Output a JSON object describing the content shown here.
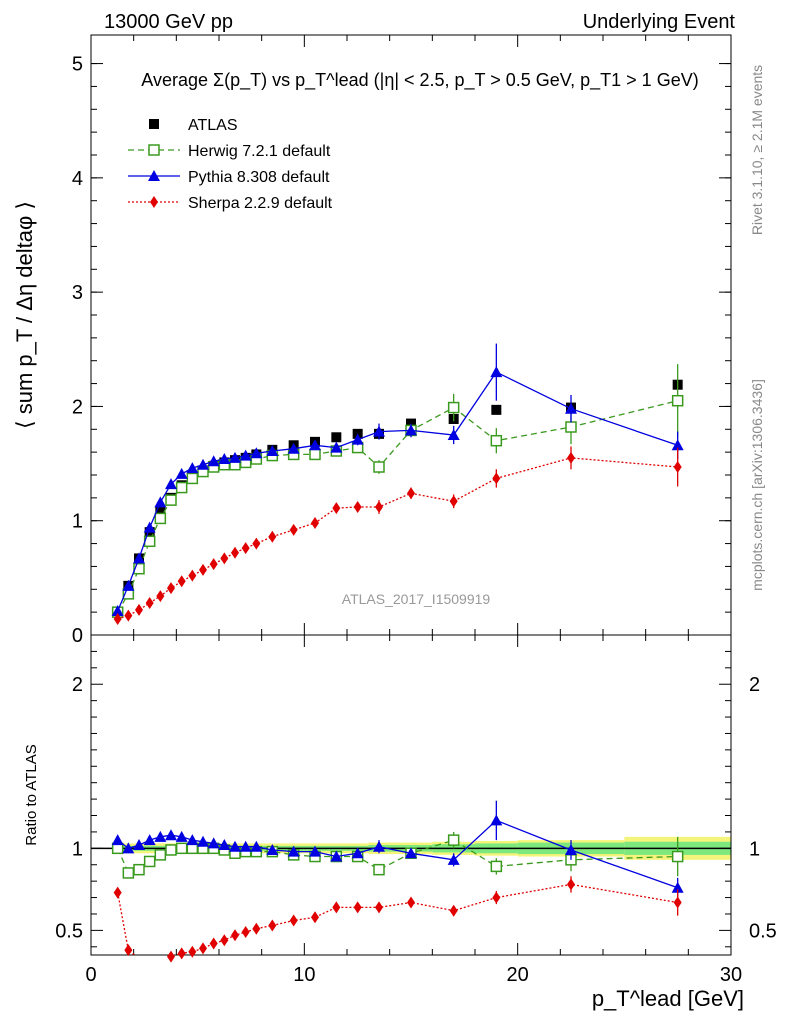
{
  "header": {
    "left": "13000 GeV pp",
    "right": "Underlying Event"
  },
  "side_text": {
    "rivet": "Rivet 3.1.10, ≥ 2.1M events",
    "mcplots": "mcplots.cern.ch [arXiv:1306.3436]"
  },
  "colors": {
    "atlas": "#000000",
    "herwig": "#3a9a1e",
    "pythia": "#0000e0",
    "sherpa": "#e00000",
    "band_inner": "#7de87d",
    "band_outer": "#f4f47a"
  },
  "chart_data": [
    {
      "type": "scatter",
      "title": "Average Σ(p_T) vs p_T^lead (|η| < 2.5, p_T > 0.5 GeV, p_T1 > 1 GeV)",
      "ylabel": "⟨ sum p_T / Δη deltaφ ⟩",
      "watermark": "ATLAS_2017_I1509919",
      "xlim": [
        0,
        30
      ],
      "ylim": [
        0,
        5.25
      ],
      "yticks": [
        0,
        1,
        2,
        3,
        4,
        5
      ],
      "legend_position": "top-left",
      "x": [
        1.25,
        1.75,
        2.25,
        2.75,
        3.25,
        3.75,
        4.25,
        4.75,
        5.25,
        5.75,
        6.25,
        6.75,
        7.25,
        7.75,
        8.5,
        9.5,
        10.5,
        11.5,
        12.5,
        13.5,
        15,
        17,
        19,
        22.5,
        27.5
      ],
      "series": [
        {
          "name": "ATLAS",
          "style": "marker",
          "marker": "square-filled",
          "values": [
            0.2,
            0.43,
            0.67,
            0.9,
            1.08,
            1.2,
            1.31,
            1.39,
            1.44,
            1.48,
            1.51,
            1.53,
            1.55,
            1.58,
            1.62,
            1.66,
            1.69,
            1.73,
            1.76,
            1.76,
            1.85,
            1.89,
            1.97,
            1.99,
            2.19
          ]
        },
        {
          "name": "Herwig 7.2.1 default",
          "style": "dashed",
          "marker": "square-open",
          "values": [
            0.2,
            0.36,
            0.58,
            0.82,
            1.02,
            1.18,
            1.29,
            1.37,
            1.43,
            1.47,
            1.49,
            1.49,
            1.51,
            1.54,
            1.57,
            1.58,
            1.58,
            1.61,
            1.64,
            1.47,
            1.79,
            1.99,
            1.7,
            1.82,
            2.05
          ],
          "errors": [
            0,
            0,
            0,
            0,
            0,
            0,
            0,
            0,
            0,
            0,
            0,
            0,
            0,
            0,
            0,
            0,
            0,
            0,
            0.04,
            0.06,
            0.05,
            0.12,
            0.11,
            0.15,
            0.32
          ]
        },
        {
          "name": "Pythia 8.308 default",
          "style": "solid",
          "marker": "triangle",
          "values": [
            0.21,
            0.43,
            0.67,
            0.94,
            1.16,
            1.32,
            1.41,
            1.46,
            1.49,
            1.52,
            1.54,
            1.55,
            1.57,
            1.59,
            1.61,
            1.63,
            1.66,
            1.64,
            1.71,
            1.78,
            1.79,
            1.75,
            2.3,
            1.98,
            1.66
          ],
          "errors": [
            0,
            0,
            0,
            0,
            0,
            0,
            0,
            0,
            0,
            0,
            0,
            0,
            0,
            0,
            0,
            0,
            0,
            0,
            0.05,
            0.07,
            0.06,
            0.08,
            0.25,
            0.12,
            0.12
          ]
        },
        {
          "name": "Sherpa 2.2.9 default",
          "style": "dotted",
          "marker": "diamond",
          "values": [
            0.14,
            0.17,
            0.22,
            0.28,
            0.34,
            0.41,
            0.47,
            0.52,
            0.57,
            0.62,
            0.67,
            0.72,
            0.76,
            0.8,
            0.86,
            0.92,
            0.98,
            1.11,
            1.12,
            1.12,
            1.24,
            1.17,
            1.37,
            1.55,
            1.47
          ],
          "errors": [
            0,
            0,
            0,
            0,
            0,
            0,
            0,
            0,
            0,
            0,
            0,
            0,
            0,
            0,
            0,
            0,
            0,
            0.04,
            0.04,
            0.06,
            0.05,
            0.06,
            0.08,
            0.1,
            0.17
          ]
        }
      ]
    },
    {
      "type": "scatter",
      "xlabel": "p_T^lead [GeV]",
      "ylabel": "Ratio to ATLAS",
      "xlim": [
        0,
        30
      ],
      "ylim": [
        0.35,
        2.3
      ],
      "xticks": [
        0,
        10,
        20,
        30
      ],
      "yticks": [
        0.5,
        1,
        2
      ],
      "x": [
        1.25,
        1.75,
        2.25,
        2.75,
        3.25,
        3.75,
        4.25,
        4.75,
        5.25,
        5.75,
        6.25,
        6.75,
        7.25,
        7.75,
        8.5,
        9.5,
        10.5,
        11.5,
        12.5,
        13.5,
        15,
        17,
        19,
        22.5,
        27.5
      ],
      "band": {
        "edges": [
          1,
          13,
          16,
          18,
          20,
          25,
          30
        ],
        "inner": [
          0.015,
          0.02,
          0.025,
          0.03,
          0.035,
          0.04
        ],
        "outer": [
          0.03,
          0.035,
          0.04,
          0.045,
          0.05,
          0.07
        ]
      },
      "series": [
        {
          "name": "Herwig 7.2.1 default",
          "style": "dashed",
          "marker": "square-open",
          "values": [
            1.0,
            0.85,
            0.87,
            0.92,
            0.96,
            0.99,
            1.0,
            1.0,
            1.0,
            1.0,
            0.99,
            0.97,
            0.98,
            0.98,
            0.98,
            0.96,
            0.95,
            0.95,
            0.95,
            0.87,
            0.97,
            1.05,
            0.89,
            0.93,
            0.95
          ],
          "errors": [
            0,
            0,
            0,
            0,
            0,
            0,
            0,
            0,
            0,
            0,
            0,
            0,
            0,
            0,
            0,
            0,
            0,
            0,
            0.02,
            0.03,
            0.03,
            0.05,
            0.05,
            0.07,
            0.12
          ]
        },
        {
          "name": "Pythia 8.308 default",
          "style": "solid",
          "marker": "triangle",
          "values": [
            1.05,
            1.0,
            1.02,
            1.05,
            1.07,
            1.08,
            1.07,
            1.05,
            1.04,
            1.03,
            1.02,
            1.01,
            1.01,
            1.01,
            0.99,
            0.98,
            0.98,
            0.95,
            0.97,
            1.01,
            0.97,
            0.93,
            1.17,
            0.99,
            0.76
          ],
          "errors": [
            0,
            0,
            0,
            0,
            0,
            0,
            0,
            0,
            0,
            0,
            0,
            0,
            0,
            0,
            0,
            0,
            0,
            0,
            0.02,
            0.04,
            0.03,
            0.04,
            0.12,
            0.06,
            0.06
          ]
        },
        {
          "name": "Sherpa 2.2.9 default",
          "style": "dotted",
          "marker": "diamond",
          "values": [
            0.73,
            0.38,
            0.33,
            0.31,
            0.31,
            0.34,
            0.36,
            0.37,
            0.39,
            0.42,
            0.44,
            0.47,
            0.49,
            0.51,
            0.53,
            0.56,
            0.58,
            0.64,
            0.64,
            0.64,
            0.67,
            0.62,
            0.7,
            0.78,
            0.67
          ],
          "errors": [
            0,
            0,
            0,
            0,
            0,
            0,
            0,
            0,
            0,
            0,
            0,
            0,
            0,
            0,
            0,
            0,
            0,
            0.02,
            0.02,
            0.03,
            0.03,
            0.03,
            0.04,
            0.05,
            0.08
          ]
        }
      ]
    }
  ]
}
